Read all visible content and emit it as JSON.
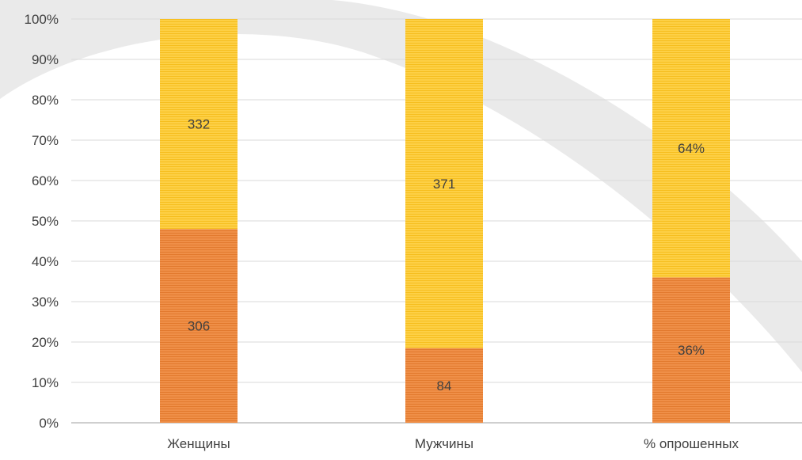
{
  "chart_data": {
    "type": "bar",
    "stacked": true,
    "percent_stacked": true,
    "categories": [
      "Женщины",
      "Мужчины",
      "% опрошенных"
    ],
    "series": [
      {
        "color": "#ED8A3E",
        "values": [
          0.48,
          0.185,
          0.36
        ],
        "data_labels": [
          "306",
          "84",
          "36%"
        ]
      },
      {
        "color": "#FDCB34",
        "values": [
          0.52,
          0.815,
          0.64
        ],
        "data_labels": [
          "332",
          "371",
          "64%"
        ]
      }
    ],
    "y_ticks": [
      "0%",
      "10%",
      "20%",
      "30%",
      "40%",
      "50%",
      "60%",
      "70%",
      "80%",
      "90%",
      "100%"
    ],
    "ylim": [
      0,
      1
    ],
    "grid": true,
    "title": "",
    "xlabel": "",
    "ylabel": ""
  },
  "colors": {
    "grid": "#D9D9D9",
    "axis": "#BFBFBF",
    "tick_text": "#404040",
    "watermark": "#E6E6E6"
  }
}
